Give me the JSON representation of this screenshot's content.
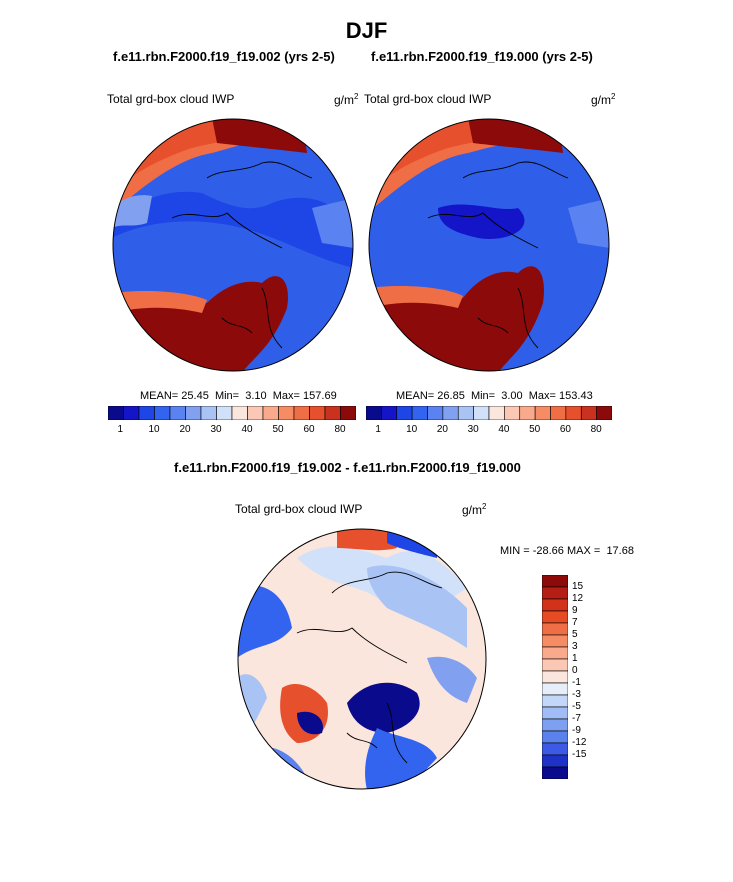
{
  "figure": {
    "title": "DJF",
    "panel_left_case": "f.e11.rbn.F2000.f19_f19.002 (yrs 2-5)",
    "panel_right_case": "f.e11.rbn.F2000.f19_f19.000 (yrs 2-5)",
    "diff_title": "f.e11.rbn.F2000.f19_f19.002 - f.e11.rbn.F2000.f19_f19.000"
  },
  "chart_data": [
    {
      "type": "heatmap",
      "projection": "north polar stereographic",
      "field": "Total grd-box cloud IWP",
      "units": "g/m",
      "units_sup": "2",
      "stats": {
        "mean_label": "MEAN=",
        "mean": "25.45",
        "min_label": "Min=",
        "min": "3.10",
        "max_label": "Max=",
        "max": "157.69"
      },
      "colorbar": {
        "orientation": "horizontal",
        "colors": [
          "#0a0a8c",
          "#1414c8",
          "#1e46e6",
          "#3264f0",
          "#5a82f0",
          "#82a0f0",
          "#aac3f5",
          "#d2e1fa",
          "#fae6dc",
          "#fac8b4",
          "#faaa8c",
          "#f58c64",
          "#f06e46",
          "#e6502d",
          "#c8321e",
          "#8c0a0a"
        ],
        "tick_labels": [
          "1",
          "10",
          "20",
          "30",
          "40",
          "50",
          "60",
          "80"
        ]
      }
    },
    {
      "type": "heatmap",
      "projection": "north polar stereographic",
      "field": "Total grd-box cloud IWP",
      "units": "g/m",
      "units_sup": "2",
      "stats": {
        "mean_label": "MEAN=",
        "mean": "26.85",
        "min_label": "Min=",
        "min": "3.00",
        "max_label": "Max=",
        "max": "153.43"
      },
      "colorbar": {
        "orientation": "horizontal",
        "colors": [
          "#0a0a8c",
          "#1414c8",
          "#1e46e6",
          "#3264f0",
          "#5a82f0",
          "#82a0f0",
          "#aac3f5",
          "#d2e1fa",
          "#fae6dc",
          "#fac8b4",
          "#faaa8c",
          "#f58c64",
          "#f06e46",
          "#e6502d",
          "#c8321e",
          "#8c0a0a"
        ],
        "tick_labels": [
          "1",
          "10",
          "20",
          "30",
          "40",
          "50",
          "60",
          "80"
        ]
      }
    },
    {
      "type": "heatmap",
      "projection": "north polar stereographic",
      "field": "Total grd-box cloud IWP",
      "units": "g/m",
      "units_sup": "2",
      "stats": {
        "min_label": "MIN =",
        "min": "-28.66",
        "max_label": "MAX =",
        "max": "17.68"
      },
      "colorbar": {
        "orientation": "vertical",
        "colors": [
          "#8c0a0a",
          "#b41e14",
          "#d23219",
          "#e64b23",
          "#f06e46",
          "#f58c64",
          "#faaa8c",
          "#fac8b4",
          "#fae6dc",
          "#e6eefa",
          "#c3d7f8",
          "#a0bef5",
          "#7da0f0",
          "#5a82ec",
          "#3c5ae6",
          "#1e32c8",
          "#0a0a8c"
        ],
        "tick_labels": [
          "15",
          "12",
          "9",
          "7",
          "5",
          "3",
          "1",
          "0",
          "-1",
          "-3",
          "-5",
          "-7",
          "-9",
          "-12",
          "-15"
        ]
      }
    }
  ]
}
